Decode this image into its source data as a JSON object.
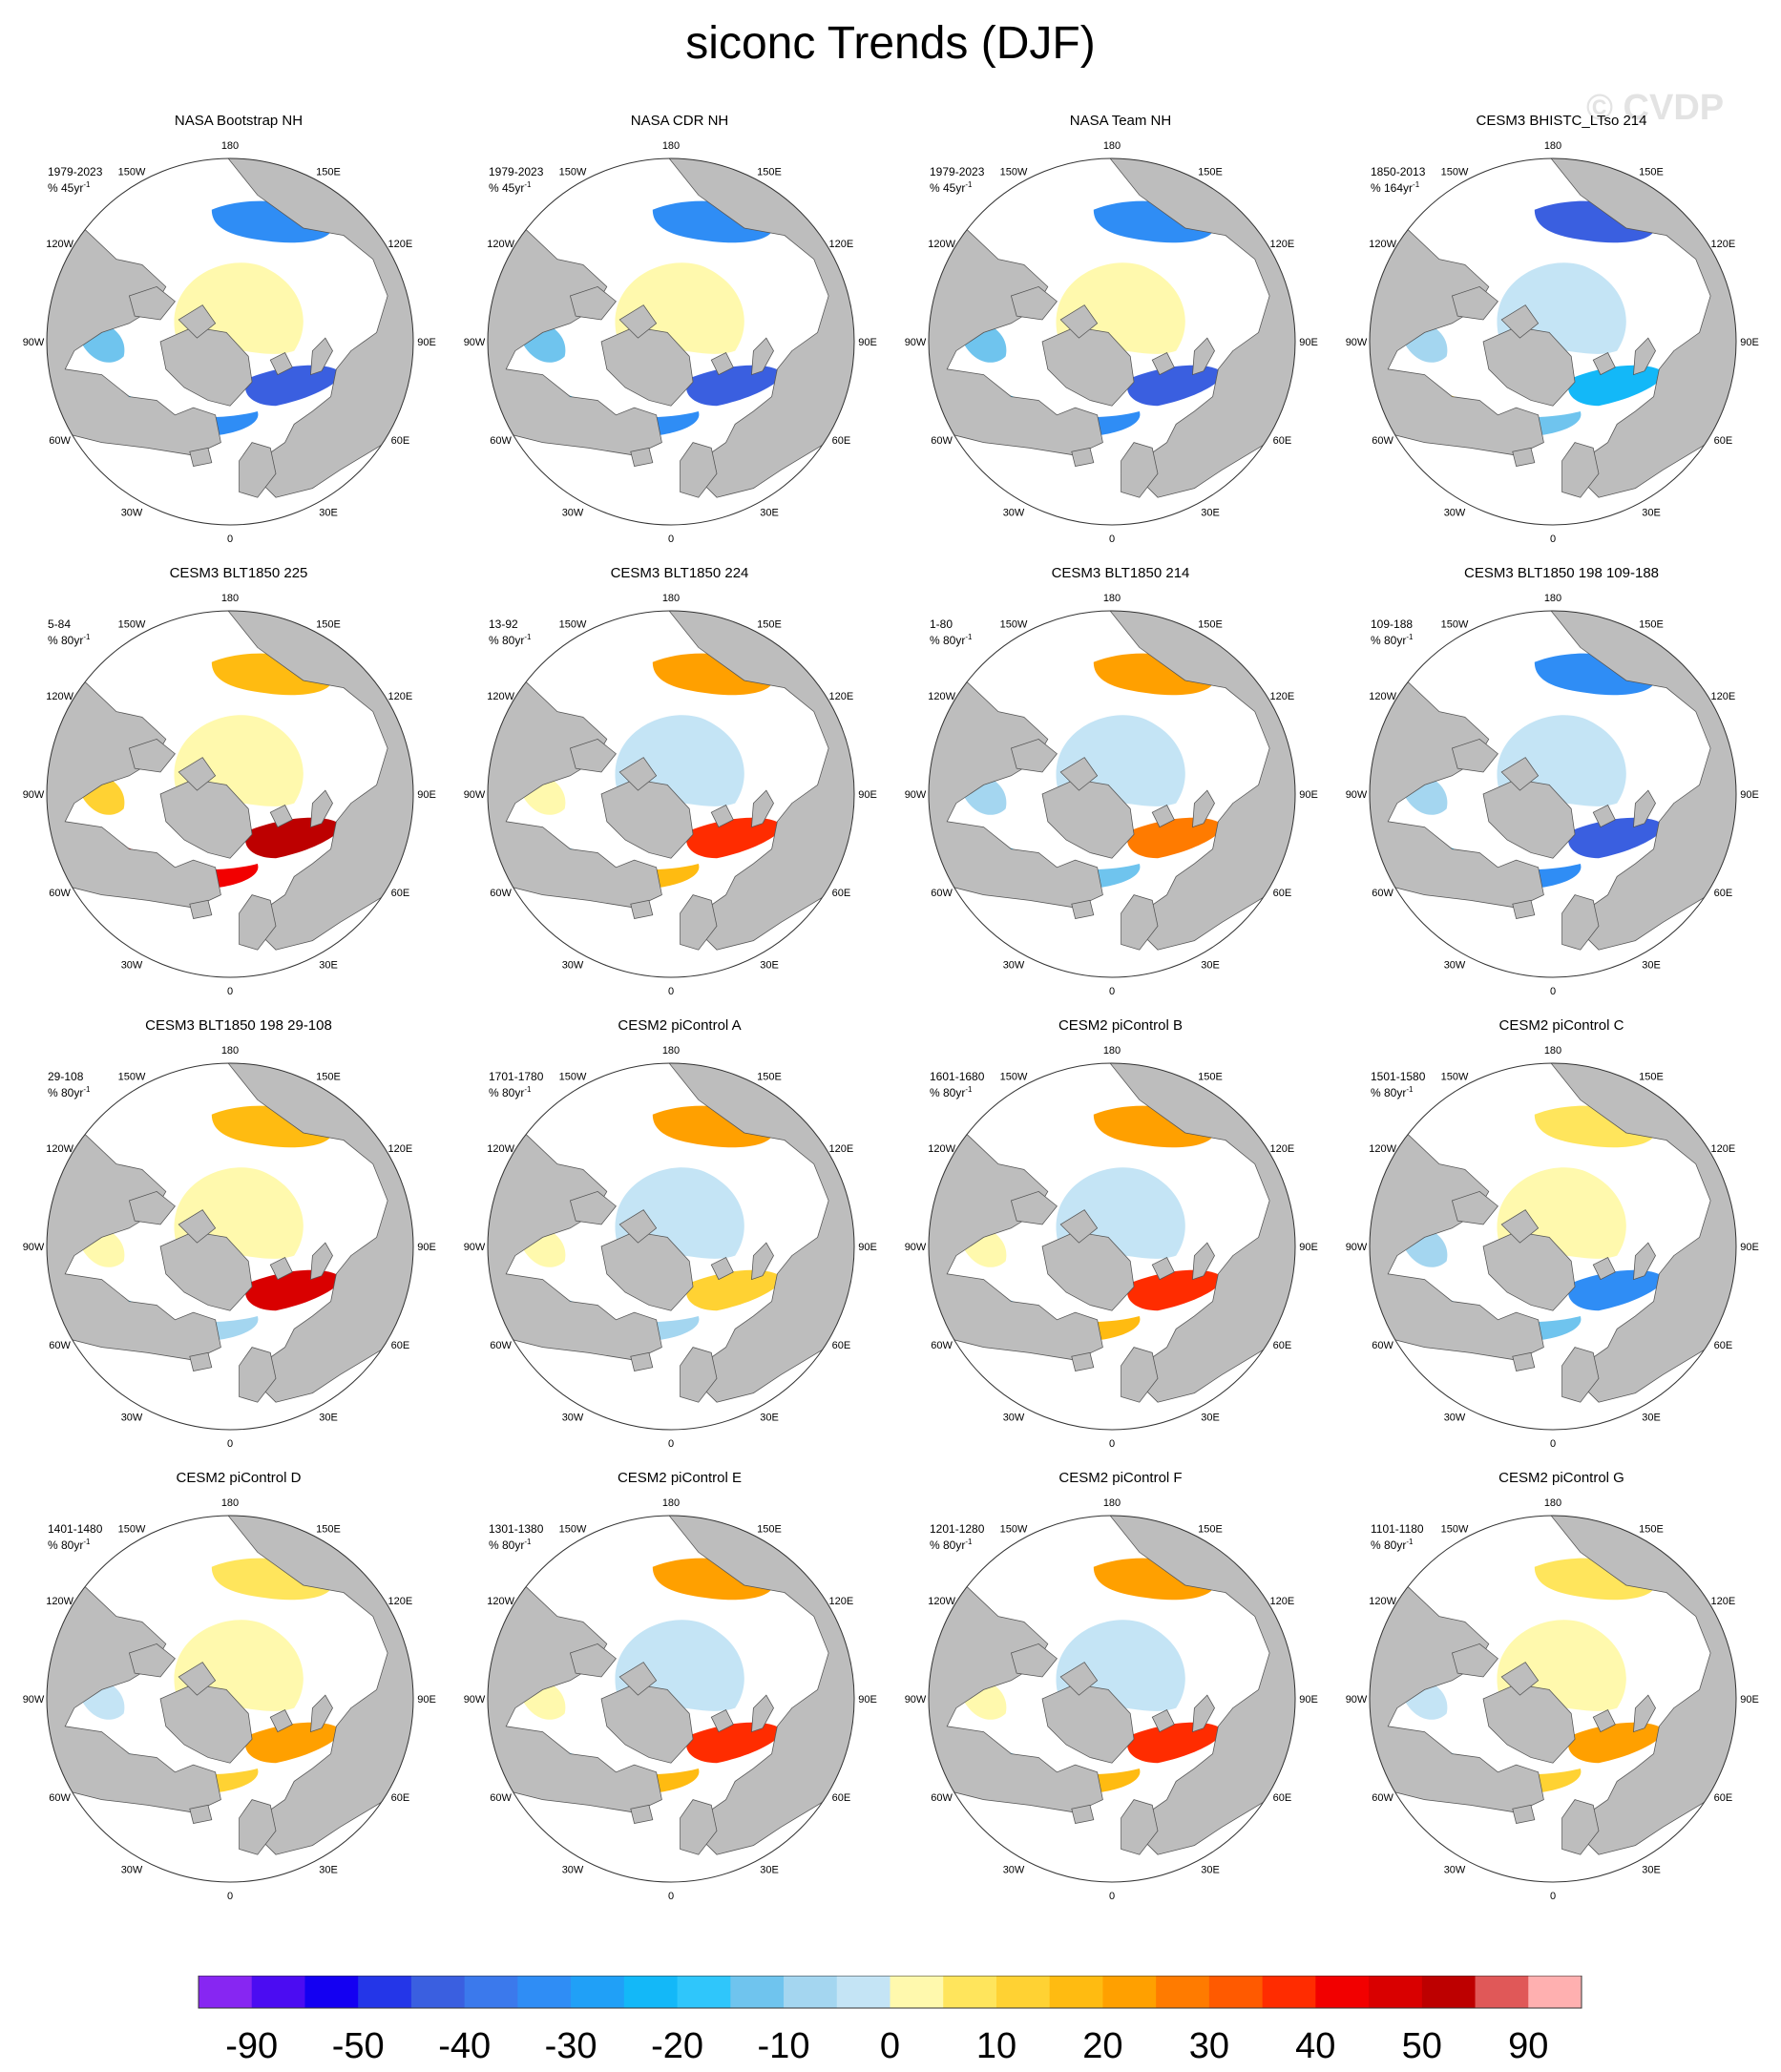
{
  "title": "siconc Trends (DJF)",
  "watermark": "© CVDP",
  "lon_labels": [
    "180",
    "150E",
    "120E",
    "90E",
    "60E",
    "30E",
    "0",
    "30W",
    "60W",
    "90W",
    "120W",
    "150W"
  ],
  "colors": {
    "land": "#bdbdbd",
    "ocean": "#ffffff",
    "coast": "#555555",
    "palette": [
      "#8726f2",
      "#4b0cf2",
      "#1400f2",
      "#2436e8",
      "#3a5fe0",
      "#3b79ec",
      "#2f8df5",
      "#20a0f7",
      "#13b8f8",
      "#2fc6fb",
      "#6fc4ee",
      "#a4d6f0",
      "#c4e4f5",
      "#fff9ad",
      "#ffe55c",
      "#ffd233",
      "#ffbb11",
      "#ffa000",
      "#ff7b00",
      "#ff5a00",
      "#ff2c00",
      "#f20000",
      "#d90000",
      "#bd0000",
      "#e05858",
      "#ffb0b0"
    ]
  },
  "colorbar": {
    "labels": [
      "-90",
      "-50",
      "-40",
      "-30",
      "-20",
      "-10",
      "0",
      "10",
      "20",
      "30",
      "40",
      "50",
      "90"
    ]
  },
  "panels": [
    {
      "title": "NASA Bootstrap NH",
      "period": "1979-2023",
      "unit": "% 45yr",
      "pattern": "obs"
    },
    {
      "title": "NASA CDR NH",
      "period": "1979-2023",
      "unit": "% 45yr",
      "pattern": "obs"
    },
    {
      "title": "NASA Team NH",
      "period": "1979-2023",
      "unit": "% 45yr",
      "pattern": "obs"
    },
    {
      "title": "CESM3 BHISTC_LTso 214",
      "period": "1850-2013",
      "unit": "% 164yr",
      "pattern": "hist"
    },
    {
      "title": "CESM3 BLT1850 225",
      "period": "5-84",
      "unit": "% 80yr",
      "pattern": "strong-pos"
    },
    {
      "title": "CESM3 BLT1850 224",
      "period": "13-92",
      "unit": "% 80yr",
      "pattern": "pos"
    },
    {
      "title": "CESM3 BLT1850 214",
      "period": "1-80",
      "unit": "% 80yr",
      "pattern": "mixed"
    },
    {
      "title": "CESM3 BLT1850 198 109-188",
      "period": "109-188",
      "unit": "% 80yr",
      "pattern": "neg"
    },
    {
      "title": "CESM3 BLT1850 198 29-108",
      "period": "29-108",
      "unit": "% 80yr",
      "pattern": "mixed-pos"
    },
    {
      "title": "CESM2 piControl A",
      "period": "1701-1780",
      "unit": "% 80yr",
      "pattern": "weak"
    },
    {
      "title": "CESM2 piControl B",
      "period": "1601-1680",
      "unit": "% 80yr",
      "pattern": "pos"
    },
    {
      "title": "CESM2 piControl C",
      "period": "1501-1580",
      "unit": "% 80yr",
      "pattern": "neg-weak"
    },
    {
      "title": "CESM2 piControl D",
      "period": "1401-1480",
      "unit": "% 80yr",
      "pattern": "weak-pos"
    },
    {
      "title": "CESM2 piControl E",
      "period": "1301-1380",
      "unit": "% 80yr",
      "pattern": "pos"
    },
    {
      "title": "CESM2 piControl F",
      "period": "1201-1280",
      "unit": "% 80yr",
      "pattern": "pos"
    },
    {
      "title": "CESM2 piControl G",
      "period": "1101-1180",
      "unit": "% 80yr",
      "pattern": "weak-pos"
    }
  ]
}
